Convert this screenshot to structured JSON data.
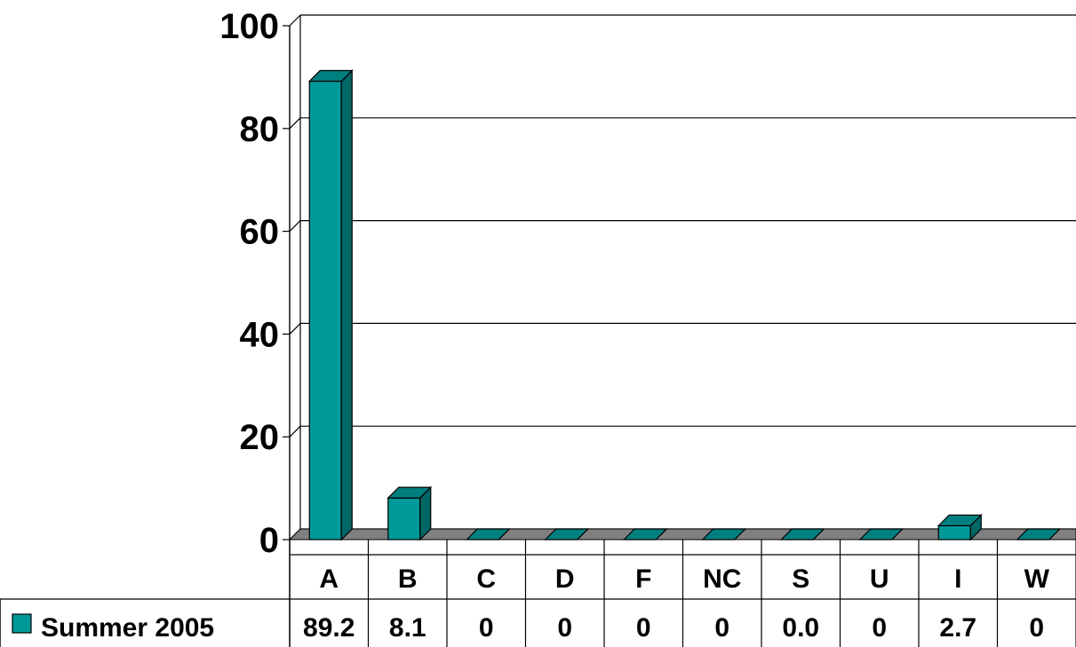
{
  "chart_data": {
    "type": "bar",
    "categories": [
      "A",
      "B",
      "C",
      "D",
      "F",
      "NC",
      "S",
      "U",
      "I",
      "W"
    ],
    "series": [
      {
        "name": "Summer 2005",
        "values": [
          89.2,
          8.1,
          0,
          0,
          0,
          0,
          0.0,
          0,
          2.7,
          0
        ],
        "labels": [
          "89.2",
          "8.1",
          "0",
          "0",
          "0",
          "0",
          "0.0",
          "0",
          "2.7",
          "0"
        ]
      }
    ],
    "yticks": [
      "0",
      "20",
      "40",
      "60",
      "80",
      "100"
    ],
    "ylim": [
      0,
      100
    ],
    "grid": true,
    "three_d": true,
    "data_table": true,
    "colors": {
      "bar_front": "#009999",
      "bar_side": "#006666",
      "bar_top": "#007f7f",
      "floor": "#808080",
      "grid": "#000000"
    }
  }
}
